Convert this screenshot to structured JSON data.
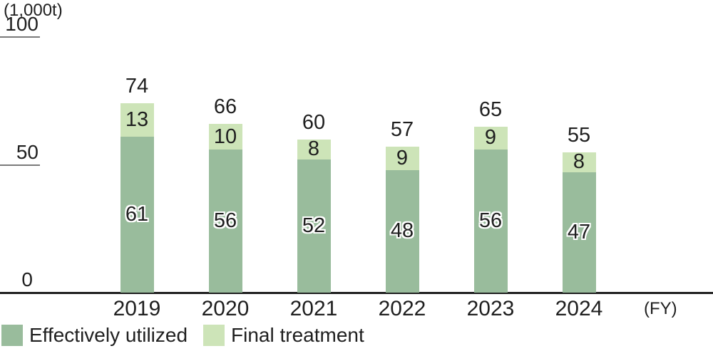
{
  "unit_label": "(1,000t)",
  "fy_label": "(FY)",
  "chart_data": {
    "type": "bar",
    "stacked": true,
    "title": "",
    "xlabel": "(FY)",
    "ylabel": "(1,000t)",
    "categories": [
      "2019",
      "2020",
      "2021",
      "2022",
      "2023",
      "2024"
    ],
    "series": [
      {
        "name": "Effectively utilized",
        "color": "#99bc9c",
        "values": [
          61,
          56,
          52,
          48,
          56,
          47
        ]
      },
      {
        "name": "Final treatment",
        "color": "#cde4b8",
        "values": [
          13,
          10,
          8,
          9,
          9,
          8
        ]
      }
    ],
    "totals": [
      74,
      66,
      60,
      57,
      65,
      55
    ],
    "ylim": [
      0,
      100
    ],
    "yticks": [
      0,
      50,
      100
    ],
    "grid": false,
    "legend_position": "bottom-left"
  },
  "legend": {
    "items": [
      {
        "label": "Effectively utilized",
        "color": "#99bc9c"
      },
      {
        "label": "Final treatment",
        "color": "#cde4b8"
      }
    ]
  },
  "colors": {
    "text": "#1f1f1f",
    "axis": "#1f1f1f",
    "tick": "#7a7a7a",
    "background": "#ffffff"
  }
}
